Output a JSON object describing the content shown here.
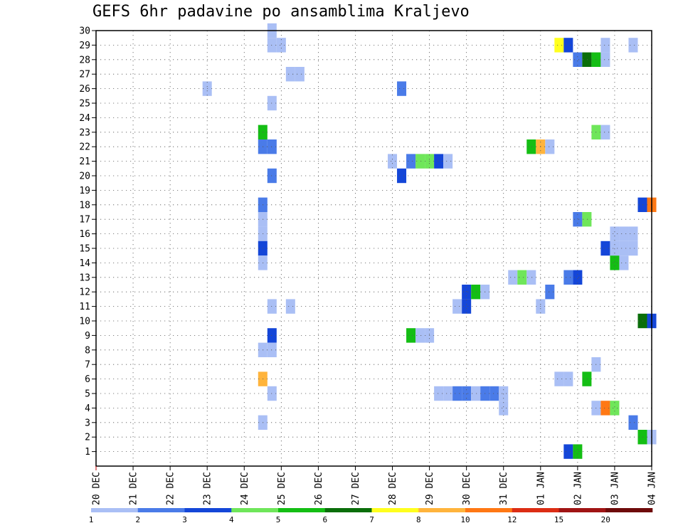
{
  "chart_data": {
    "type": "heatmap",
    "title": "GEFS 6hr padavine po ansamblima Kraljevo",
    "xlabel": "",
    "ylabel": "",
    "x_labels": [
      "20 DEC",
      "21 DEC",
      "22 DEC",
      "23 DEC",
      "24 DEC",
      "25 DEC",
      "26 DEC",
      "27 DEC",
      "28 DEC",
      "29 DEC",
      "30 DEC",
      "31 DEC",
      "01 JAN",
      "02 JAN",
      "03 JAN",
      "04 JAN"
    ],
    "y_labels": [
      "1",
      "2",
      "3",
      "4",
      "5",
      "6",
      "7",
      "8",
      "9",
      "10",
      "11",
      "12",
      "13",
      "14",
      "15",
      "16",
      "17",
      "18",
      "19",
      "20",
      "21",
      "22",
      "23",
      "24",
      "25",
      "26",
      "27",
      "28",
      "29",
      "30"
    ],
    "steps_per_day": 4,
    "grid": "dotted",
    "colorbar": {
      "ticks": [
        "1",
        "2",
        "3",
        "4",
        "5",
        "6",
        "7",
        "8",
        "10",
        "12",
        "15",
        "20"
      ],
      "colors": [
        "#aabff5",
        "#4a7be8",
        "#1446d8",
        "#6fe65a",
        "#14be14",
        "#0a6e0a",
        "#ffff1e",
        "#ffb43c",
        "#ff7814",
        "#dc2d14",
        "#a01414",
        "#6e0a0a"
      ]
    },
    "cells": [
      {
        "member": 30,
        "step": 19,
        "cls": 0
      },
      {
        "member": 29,
        "step": 19,
        "cls": 0
      },
      {
        "member": 29,
        "step": 20,
        "cls": 0
      },
      {
        "member": 29,
        "step": 50,
        "cls": 6
      },
      {
        "member": 29,
        "step": 51,
        "cls": 2
      },
      {
        "member": 29,
        "step": 55,
        "cls": 0
      },
      {
        "member": 29,
        "step": 58,
        "cls": 0
      },
      {
        "member": 28,
        "step": 52,
        "cls": 1
      },
      {
        "member": 28,
        "step": 53,
        "cls": 5
      },
      {
        "member": 28,
        "step": 54,
        "cls": 4
      },
      {
        "member": 28,
        "step": 55,
        "cls": 0
      },
      {
        "member": 27,
        "step": 21,
        "cls": 0
      },
      {
        "member": 27,
        "step": 22,
        "cls": 0
      },
      {
        "member": 26,
        "step": 12,
        "cls": 0
      },
      {
        "member": 26,
        "step": 33,
        "cls": 1
      },
      {
        "member": 25,
        "step": 19,
        "cls": 0
      },
      {
        "member": 23,
        "step": 18,
        "cls": 4
      },
      {
        "member": 23,
        "step": 54,
        "cls": 3
      },
      {
        "member": 23,
        "step": 55,
        "cls": 0
      },
      {
        "member": 22,
        "step": 18,
        "cls": 1
      },
      {
        "member": 22,
        "step": 19,
        "cls": 1
      },
      {
        "member": 22,
        "step": 47,
        "cls": 4
      },
      {
        "member": 22,
        "step": 48,
        "cls": 7
      },
      {
        "member": 22,
        "step": 49,
        "cls": 0
      },
      {
        "member": 21,
        "step": 32,
        "cls": 0
      },
      {
        "member": 21,
        "step": 34,
        "cls": 1
      },
      {
        "member": 21,
        "step": 35,
        "cls": 3
      },
      {
        "member": 21,
        "step": 36,
        "cls": 3
      },
      {
        "member": 21,
        "step": 37,
        "cls": 2
      },
      {
        "member": 21,
        "step": 38,
        "cls": 0
      },
      {
        "member": 20,
        "step": 19,
        "cls": 1
      },
      {
        "member": 20,
        "step": 33,
        "cls": 2
      },
      {
        "member": 18,
        "step": 18,
        "cls": 1
      },
      {
        "member": 18,
        "step": 59,
        "cls": 2
      },
      {
        "member": 18,
        "step": 60,
        "cls": 8
      },
      {
        "member": 17,
        "step": 18,
        "cls": 0
      },
      {
        "member": 17,
        "step": 52,
        "cls": 1
      },
      {
        "member": 17,
        "step": 53,
        "cls": 3
      },
      {
        "member": 16,
        "step": 18,
        "cls": 0
      },
      {
        "member": 16,
        "step": 56,
        "cls": 0
      },
      {
        "member": 16,
        "step": 57,
        "cls": 0
      },
      {
        "member": 16,
        "step": 58,
        "cls": 0
      },
      {
        "member": 15,
        "step": 18,
        "cls": 2
      },
      {
        "member": 15,
        "step": 55,
        "cls": 2
      },
      {
        "member": 15,
        "step": 56,
        "cls": 0
      },
      {
        "member": 15,
        "step": 57,
        "cls": 0
      },
      {
        "member": 15,
        "step": 58,
        "cls": 0
      },
      {
        "member": 14,
        "step": 18,
        "cls": 0
      },
      {
        "member": 14,
        "step": 56,
        "cls": 4
      },
      {
        "member": 14,
        "step": 57,
        "cls": 0
      },
      {
        "member": 13,
        "step": 45,
        "cls": 0
      },
      {
        "member": 13,
        "step": 46,
        "cls": 3
      },
      {
        "member": 13,
        "step": 47,
        "cls": 0
      },
      {
        "member": 13,
        "step": 51,
        "cls": 1
      },
      {
        "member": 13,
        "step": 52,
        "cls": 2
      },
      {
        "member": 12,
        "step": 40,
        "cls": 2
      },
      {
        "member": 12,
        "step": 41,
        "cls": 4
      },
      {
        "member": 12,
        "step": 42,
        "cls": 0
      },
      {
        "member": 12,
        "step": 49,
        "cls": 1
      },
      {
        "member": 11,
        "step": 19,
        "cls": 0
      },
      {
        "member": 11,
        "step": 21,
        "cls": 0
      },
      {
        "member": 11,
        "step": 39,
        "cls": 0
      },
      {
        "member": 11,
        "step": 40,
        "cls": 2
      },
      {
        "member": 11,
        "step": 48,
        "cls": 0
      },
      {
        "member": 10,
        "step": 59,
        "cls": 5
      },
      {
        "member": 10,
        "step": 60,
        "cls": 2
      },
      {
        "member": 9,
        "step": 19,
        "cls": 2
      },
      {
        "member": 9,
        "step": 34,
        "cls": 4
      },
      {
        "member": 9,
        "step": 35,
        "cls": 0
      },
      {
        "member": 9,
        "step": 36,
        "cls": 0
      },
      {
        "member": 8,
        "step": 18,
        "cls": 0
      },
      {
        "member": 8,
        "step": 19,
        "cls": 0
      },
      {
        "member": 7,
        "step": 54,
        "cls": 0
      },
      {
        "member": 6,
        "step": 18,
        "cls": 7
      },
      {
        "member": 6,
        "step": 50,
        "cls": 0
      },
      {
        "member": 6,
        "step": 51,
        "cls": 0
      },
      {
        "member": 6,
        "step": 53,
        "cls": 4
      },
      {
        "member": 5,
        "step": 19,
        "cls": 0
      },
      {
        "member": 5,
        "step": 37,
        "cls": 0
      },
      {
        "member": 5,
        "step": 38,
        "cls": 0
      },
      {
        "member": 5,
        "step": 39,
        "cls": 1
      },
      {
        "member": 5,
        "step": 40,
        "cls": 1
      },
      {
        "member": 5,
        "step": 41,
        "cls": 0
      },
      {
        "member": 5,
        "step": 42,
        "cls": 1
      },
      {
        "member": 5,
        "step": 43,
        "cls": 1
      },
      {
        "member": 5,
        "step": 44,
        "cls": 0
      },
      {
        "member": 4,
        "step": 44,
        "cls": 0
      },
      {
        "member": 4,
        "step": 54,
        "cls": 0
      },
      {
        "member": 4,
        "step": 55,
        "cls": 8
      },
      {
        "member": 4,
        "step": 56,
        "cls": 3
      },
      {
        "member": 3,
        "step": 18,
        "cls": 0
      },
      {
        "member": 3,
        "step": 58,
        "cls": 1
      },
      {
        "member": 2,
        "step": 59,
        "cls": 4
      },
      {
        "member": 2,
        "step": 60,
        "cls": 0
      },
      {
        "member": 1,
        "step": 51,
        "cls": 2
      },
      {
        "member": 1,
        "step": 52,
        "cls": 4
      }
    ]
  }
}
